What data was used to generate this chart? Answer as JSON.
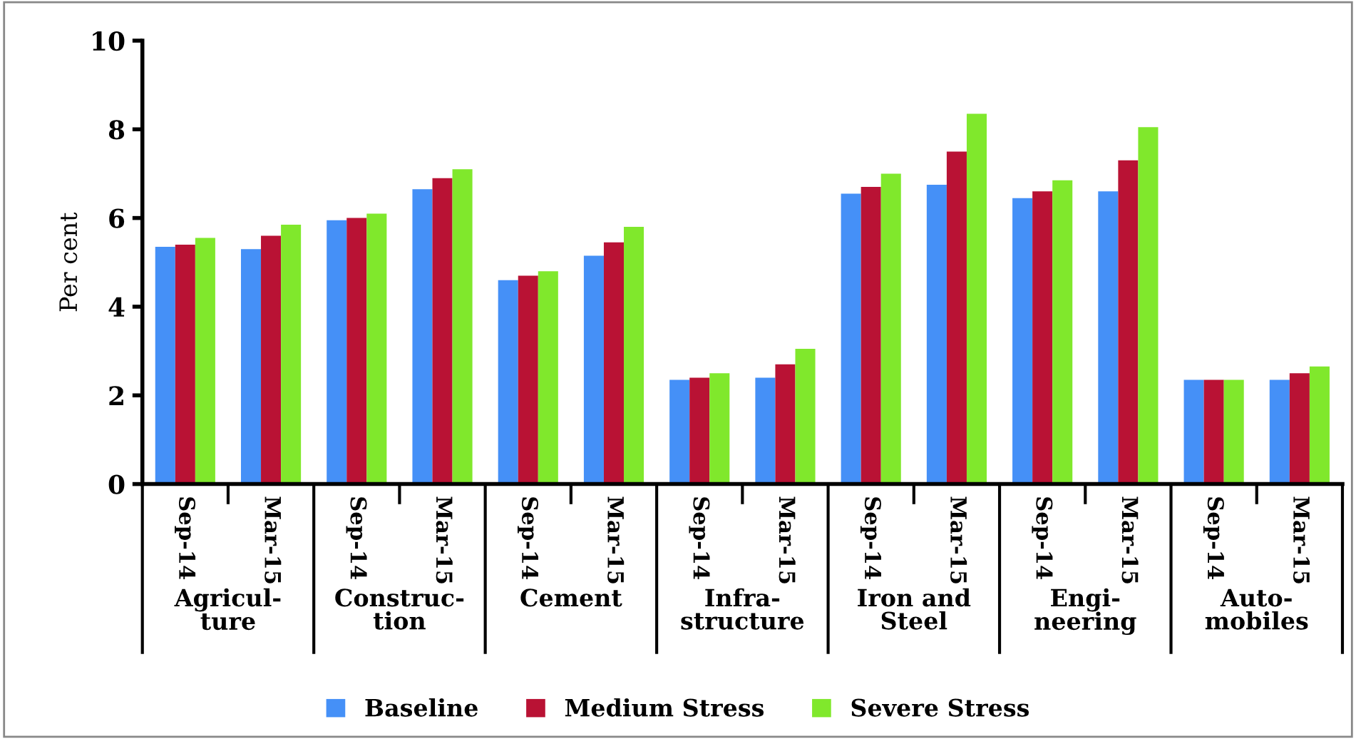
{
  "chart_data": {
    "type": "bar",
    "ylabel": "Per cent",
    "categories": [
      "Sep-14",
      "Mar-15",
      "Sep-14",
      "Mar-15",
      "Sep-14",
      "Mar-15",
      "Sep-14",
      "Mar-15",
      "Sep-14",
      "Mar-15",
      "Sep-14",
      "Mar-15",
      "Sep-14",
      "Mar-15"
    ],
    "series": [
      {
        "name": "Baseline",
        "color": "#4590f7",
        "values": [
          5.35,
          5.3,
          5.95,
          6.65,
          4.6,
          5.15,
          2.35,
          2.4,
          6.55,
          6.75,
          6.45,
          6.6,
          2.35,
          2.35
        ]
      },
      {
        "name": "Medium Stress",
        "color": "#b91234",
        "values": [
          5.4,
          5.6,
          6.0,
          6.9,
          4.7,
          5.45,
          2.4,
          2.7,
          6.7,
          7.5,
          6.6,
          7.3,
          2.35,
          2.5
        ]
      },
      {
        "name": "Severe Stress",
        "color": "#80e82c",
        "values": [
          5.55,
          5.85,
          6.1,
          7.1,
          4.8,
          5.8,
          2.5,
          3.05,
          7.0,
          8.35,
          6.85,
          8.05,
          2.35,
          2.65
        ]
      }
    ],
    "annotations": [
      "Agricul-\nture",
      "Construc-\ntion",
      "Cement",
      "Infra-\nstructure",
      "Iron and\nSteel",
      "Engi-\nneering",
      "Auto-\nmobiles"
    ],
    "ylim": [
      0,
      10
    ],
    "yticks": [
      0,
      2,
      4,
      6,
      8,
      10
    ],
    "grid": false,
    "legend": "bottom"
  }
}
